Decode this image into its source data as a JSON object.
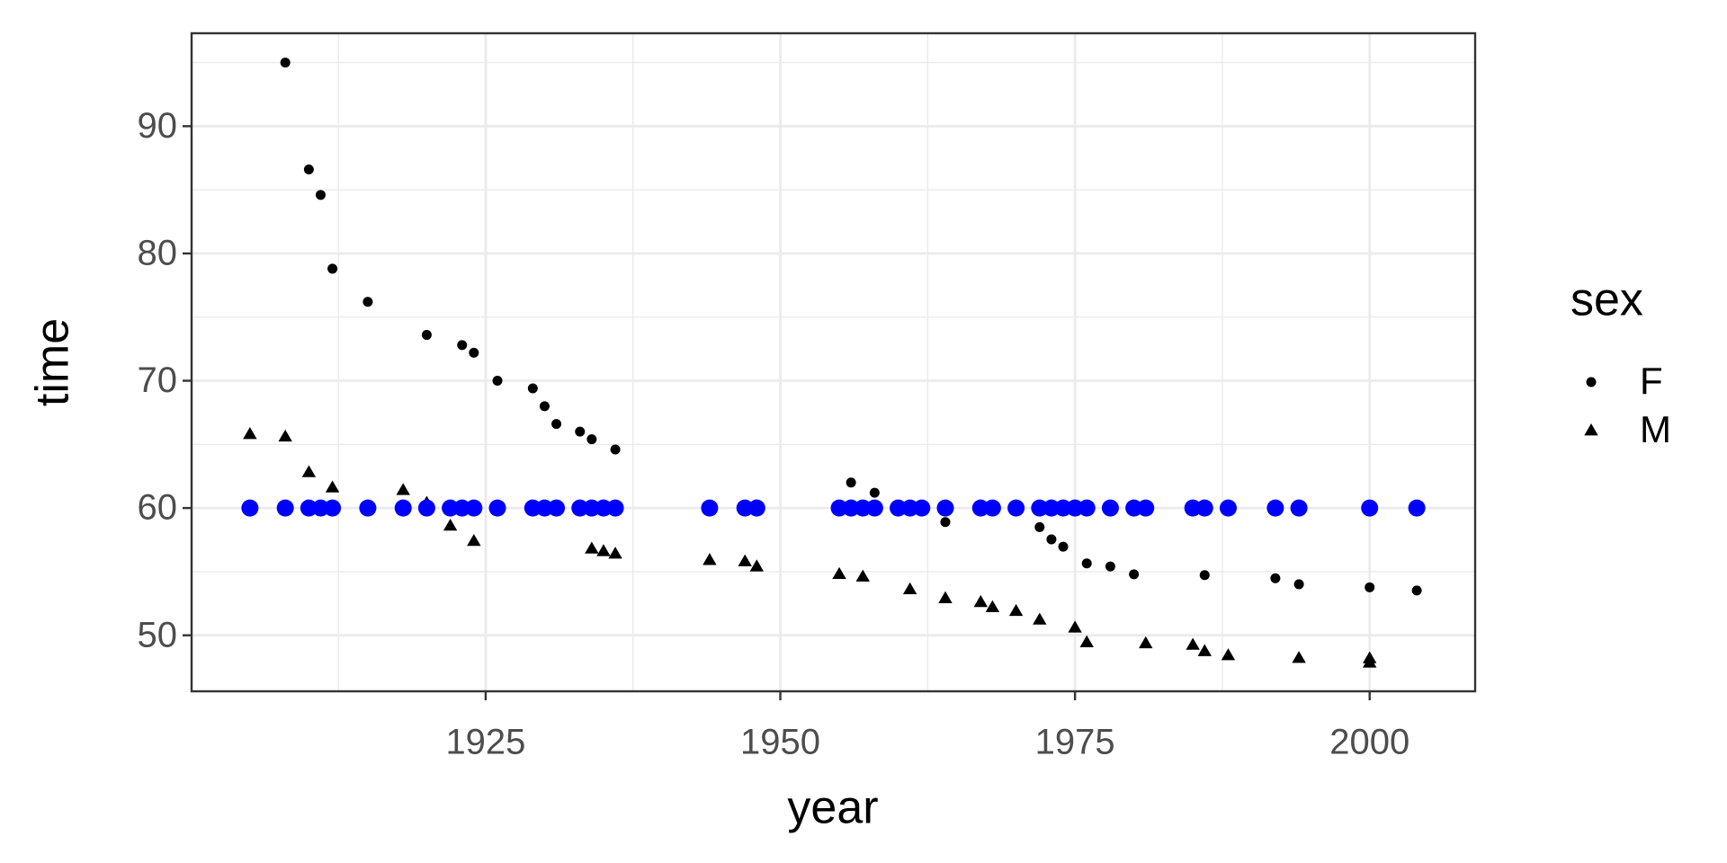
{
  "chart_data": {
    "type": "scatter",
    "x_label": "year",
    "y_label": "time",
    "legend_title": "sex",
    "xlim": [
      1900.05,
      2008.95
    ],
    "ylim": [
      45.6,
      97.3
    ],
    "xticks": [
      1925,
      1950,
      1975,
      2000
    ],
    "yticks": [
      50,
      60,
      70,
      80,
      90
    ],
    "x_minor_ticks": [
      1912.5,
      1937.5,
      1962.5,
      1987.5
    ],
    "y_minor_ticks": [
      55,
      65,
      75,
      85,
      95
    ],
    "grid": true,
    "legend_position": "right",
    "series": [
      {
        "name": "F",
        "color": "#000000",
        "shape": "circle",
        "x": [
          1908,
          1910,
          1911,
          1912,
          1915,
          1920,
          1923,
          1924,
          1926,
          1929,
          1930,
          1931,
          1933,
          1934,
          1936,
          1956,
          1958,
          1960,
          1962,
          1964,
          1972,
          1973,
          1974,
          1976,
          1978,
          1980,
          1986,
          1992,
          1994,
          2000,
          2004
        ],
        "values": [
          95.0,
          86.6,
          84.6,
          78.8,
          76.2,
          73.6,
          72.8,
          72.2,
          70.0,
          69.4,
          68.0,
          66.6,
          66.0,
          65.4,
          64.6,
          62.0,
          61.2,
          60.2,
          59.9,
          58.9,
          58.5,
          57.54,
          56.96,
          55.65,
          55.41,
          54.79,
          54.73,
          54.48,
          54.01,
          53.77,
          53.52
        ]
      },
      {
        "name": "M",
        "color": "#000000",
        "shape": "triangle",
        "x": [
          1905,
          1908,
          1910,
          1912,
          1918,
          1920,
          1922,
          1924,
          1934,
          1935,
          1936,
          1944,
          1947,
          1948,
          1955,
          1957,
          1961,
          1964,
          1967,
          1968,
          1970,
          1972,
          1975,
          1976,
          1981,
          1985,
          1986,
          1988,
          1994,
          2000,
          2000
        ],
        "values": [
          65.8,
          65.6,
          62.8,
          61.6,
          61.4,
          60.4,
          58.6,
          57.4,
          56.8,
          56.6,
          56.4,
          55.9,
          55.8,
          55.4,
          54.8,
          54.6,
          53.6,
          52.9,
          52.6,
          52.2,
          51.9,
          51.22,
          50.59,
          49.44,
          49.36,
          49.24,
          48.74,
          48.42,
          48.21,
          48.18,
          47.84
        ]
      },
      {
        "color": "#0000ff",
        "shape": "circle",
        "size": "large",
        "x": [
          1905,
          1908,
          1910,
          1911,
          1912,
          1915,
          1918,
          1920,
          1922,
          1923,
          1924,
          1926,
          1929,
          1930,
          1931,
          1933,
          1934,
          1935,
          1936,
          1944,
          1947,
          1948,
          1955,
          1956,
          1957,
          1958,
          1960,
          1961,
          1962,
          1964,
          1967,
          1968,
          1970,
          1972,
          1973,
          1974,
          1975,
          1976,
          1978,
          1980,
          1981,
          1985,
          1986,
          1988,
          1992,
          1994,
          2000,
          2004
        ],
        "values": [
          60,
          60,
          60,
          60,
          60,
          60,
          60,
          60,
          60,
          60,
          60,
          60,
          60,
          60,
          60,
          60,
          60,
          60,
          60,
          60,
          60,
          60,
          60,
          60,
          60,
          60,
          60,
          60,
          60,
          60,
          60,
          60,
          60,
          60,
          60,
          60,
          60,
          60,
          60,
          60,
          60,
          60,
          60,
          60,
          60,
          60,
          60,
          60
        ]
      }
    ]
  }
}
